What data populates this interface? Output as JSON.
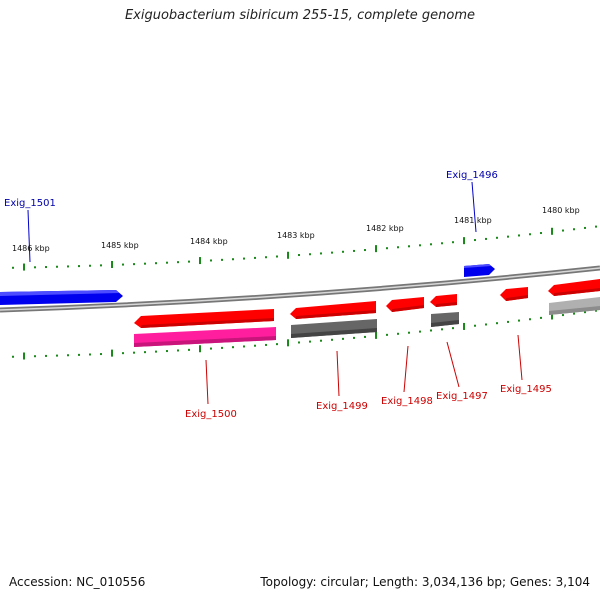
{
  "title": "Exiguobacterium sibiricum 255-15, complete genome",
  "footer": {
    "accession": "Accession: NC_010556",
    "topology": "Topology: circular; Length: 3,034,136 bp; Genes: 3,104"
  },
  "scale_labels": [
    "1486 kbp",
    "1485 kbp",
    "1484 kbp",
    "1483 kbp",
    "1482 kbp",
    "1481 kbp",
    "1480 kbp"
  ],
  "gene_labels": {
    "forward": [
      "Exig_1501",
      "Exig_1496"
    ],
    "reverse": [
      "Exig_1500",
      "Exig_1499",
      "Exig_1498",
      "Exig_1497",
      "Exig_1495"
    ]
  },
  "colors": {
    "forward_gene": "#0000ee",
    "reverse_gene": "#ff0000",
    "reverse_gene_dark": "#cc0000",
    "pink_gene": "#ff1f9e",
    "dark_gray_gene": "#666666",
    "light_gray_gene": "#b0b0b0",
    "backbone": "#808080",
    "tick": "#1a8a1a",
    "forward_label": "#0000aa",
    "reverse_label": "#cc0000"
  }
}
